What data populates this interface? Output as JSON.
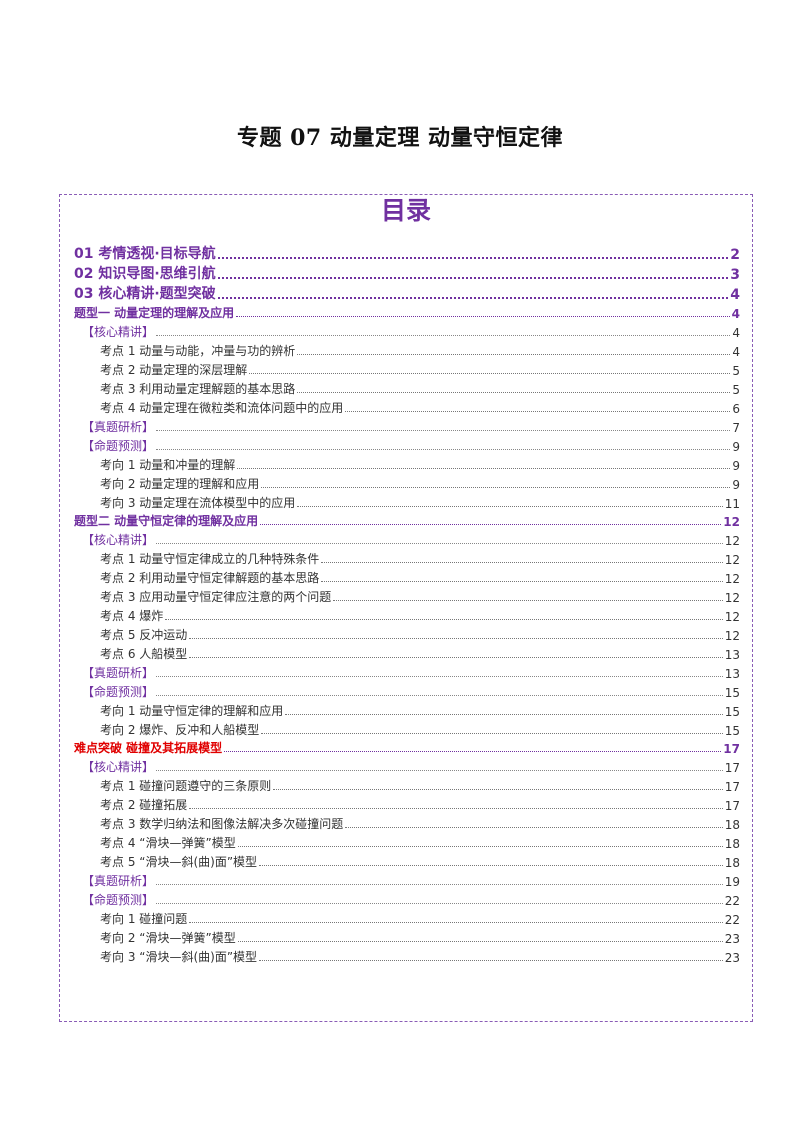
{
  "document": {
    "title": "专题 07  动量定理  动量守恒定律"
  },
  "toc": {
    "heading": "目录",
    "entries": [
      {
        "level": 1,
        "text": "01 考情透视·目标导航",
        "page": "2"
      },
      {
        "level": 1,
        "text": "02 知识导图·思维引航",
        "page": "3"
      },
      {
        "level": 1,
        "text": "03 核心精讲·题型突破",
        "page": "4"
      },
      {
        "level": 2,
        "text": "题型一    动量定理的理解及应用",
        "page": "4"
      },
      {
        "level": 3,
        "text": "【核心精讲】",
        "page": "4"
      },
      {
        "level": 4,
        "text": "考点 1  动量与动能，冲量与功的辨析",
        "page": "4"
      },
      {
        "level": 4,
        "text": "考点 2  动量定理的深层理解",
        "page": "5"
      },
      {
        "level": 4,
        "text": "考点 3  利用动量定理解题的基本思路",
        "page": "5"
      },
      {
        "level": 4,
        "text": "考点 4  动量定理在微粒类和流体问题中的应用",
        "page": "6"
      },
      {
        "level": 3,
        "text": "【真题研析】",
        "page": "7"
      },
      {
        "level": 3,
        "text": "【命题预测】",
        "page": "9"
      },
      {
        "level": 4,
        "text": "考向 1    动量和冲量的理解",
        "page": "9"
      },
      {
        "level": 4,
        "text": "考向 2    动量定理的理解和应用",
        "page": "9"
      },
      {
        "level": 4,
        "text": "考向 3    动量定理在流体模型中的应用",
        "page": "11"
      },
      {
        "level": 2,
        "text": "题型二    动量守恒定律的理解及应用",
        "page": "12"
      },
      {
        "level": 3,
        "text": "【核心精讲】",
        "page": "12"
      },
      {
        "level": 4,
        "text": "考点 1  动量守恒定律成立的几种特殊条件",
        "page": "12"
      },
      {
        "level": 4,
        "text": "考点 2  利用动量守恒定律解题的基本思路",
        "page": "12"
      },
      {
        "level": 4,
        "text": "考点 3  应用动量守恒定律应注意的两个问题",
        "page": "12"
      },
      {
        "level": 4,
        "text": "考点 4  爆炸",
        "page": "12"
      },
      {
        "level": 4,
        "text": "考点 5  反冲运动",
        "page": "12"
      },
      {
        "level": 4,
        "text": "考点 6  人船模型",
        "page": "13"
      },
      {
        "level": 3,
        "text": "【真题研析】",
        "page": "13"
      },
      {
        "level": 3,
        "text": "【命题预测】",
        "page": "15"
      },
      {
        "level": 4,
        "text": "考向 1    动量守恒定律的理解和应用",
        "page": "15"
      },
      {
        "level": 4,
        "text": "考向 2    爆炸、反冲和人船模型",
        "page": "15"
      },
      {
        "level": 2,
        "text": "难点突破    碰撞及其拓展模型",
        "page": "17",
        "accent": "red"
      },
      {
        "level": 3,
        "text": "【核心精讲】",
        "page": "17"
      },
      {
        "level": 4,
        "text": "考点 1  碰撞问题遵守的三条原则",
        "page": "17"
      },
      {
        "level": 4,
        "text": "考点 2  碰撞拓展",
        "page": "17"
      },
      {
        "level": 4,
        "text": "考点 3  数学归纳法和图像法解决多次碰撞问题",
        "page": "18"
      },
      {
        "level": 4,
        "text": "考点 4  “滑块—弹簧”模型",
        "page": "18"
      },
      {
        "level": 4,
        "text": "考点 5  “滑块—斜(曲)面”模型",
        "page": "18"
      },
      {
        "level": 3,
        "text": "【真题研析】",
        "page": "19"
      },
      {
        "level": 3,
        "text": "【命题预测】",
        "page": "22"
      },
      {
        "level": 4,
        "text": "考向 1    碰撞问题",
        "page": "22"
      },
      {
        "level": 4,
        "text": "考向 2    “滑块—弹簧”模型",
        "page": "23"
      },
      {
        "level": 4,
        "text": "考向 3    “滑块—斜(曲)面”模型",
        "page": "23"
      }
    ]
  }
}
